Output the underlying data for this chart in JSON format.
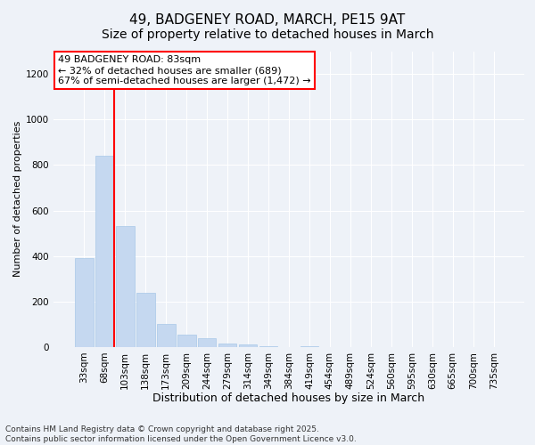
{
  "title1": "49, BADGENEY ROAD, MARCH, PE15 9AT",
  "title2": "Size of property relative to detached houses in March",
  "xlabel": "Distribution of detached houses by size in March",
  "ylabel": "Number of detached properties",
  "categories": [
    "33sqm",
    "68sqm",
    "103sqm",
    "138sqm",
    "173sqm",
    "209sqm",
    "244sqm",
    "279sqm",
    "314sqm",
    "349sqm",
    "384sqm",
    "419sqm",
    "454sqm",
    "489sqm",
    "524sqm",
    "560sqm",
    "595sqm",
    "630sqm",
    "665sqm",
    "700sqm",
    "735sqm"
  ],
  "values": [
    390,
    840,
    530,
    240,
    100,
    55,
    40,
    15,
    10,
    5,
    0,
    5,
    0,
    0,
    0,
    0,
    0,
    0,
    0,
    0,
    0
  ],
  "bar_color": "#c5d8f0",
  "bar_edge_color": "#a8c8e8",
  "vline_color": "red",
  "vline_x_index": 1,
  "annotation_line1": "49 BADGENEY ROAD: 83sqm",
  "annotation_line2": "← 32% of detached houses are smaller (689)",
  "annotation_line3": "67% of semi-detached houses are larger (1,472) →",
  "annotation_box_facecolor": "white",
  "annotation_box_edgecolor": "red",
  "ylim": [
    0,
    1300
  ],
  "yticks": [
    0,
    200,
    400,
    600,
    800,
    1000,
    1200
  ],
  "footer1": "Contains HM Land Registry data © Crown copyright and database right 2025.",
  "footer2": "Contains public sector information licensed under the Open Government Licence v3.0.",
  "bg_color": "#eef2f8",
  "plot_bg_color": "#eef2f8",
  "grid_color": "white",
  "title1_fontsize": 11,
  "title2_fontsize": 10,
  "xlabel_fontsize": 9,
  "ylabel_fontsize": 8,
  "tick_fontsize": 7.5,
  "annot_fontsize": 8,
  "footer_fontsize": 6.5
}
